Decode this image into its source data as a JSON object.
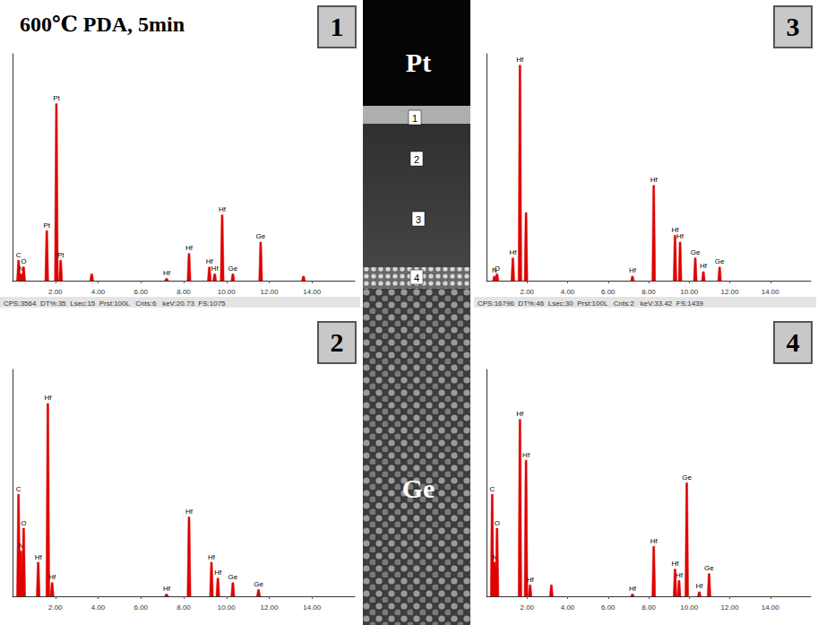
{
  "title": "600℃ PDA, 5min",
  "image": {
    "top_label": "Pt",
    "bottom_label": "Ge",
    "markers": [
      "1",
      "2",
      "3",
      "4"
    ]
  },
  "chart_data": [
    {
      "panel": "1",
      "type": "spectrum",
      "color": "#e00000",
      "xlim": [
        0,
        16
      ],
      "ylim": [
        0,
        100
      ],
      "xticks": [
        {
          "value": 2,
          "label": "2.00"
        },
        {
          "value": 4,
          "label": "4.00"
        },
        {
          "value": 6,
          "label": "6.00"
        },
        {
          "value": 8,
          "label": "8.00"
        },
        {
          "value": 10,
          "label": "10.00"
        },
        {
          "value": 12,
          "label": "12.00"
        },
        {
          "value": 14,
          "label": "14.00"
        }
      ],
      "tick_labels": "x",
      "status": "CPS:3564  DT%:35  Lsec:15  Prst:100L   Cnts:6   keV:20.73  FS:1075",
      "peaks": [
        {
          "x": 0.28,
          "y": 9,
          "label": "C"
        },
        {
          "x": 0.39,
          "y": 3,
          "label": "N"
        },
        {
          "x": 0.52,
          "y": 6,
          "label": "O"
        },
        {
          "x": 1.6,
          "y": 22,
          "label": "Pt"
        },
        {
          "x": 2.05,
          "y": 78,
          "label": "Pt"
        },
        {
          "x": 2.25,
          "y": 9,
          "label": "Pt"
        },
        {
          "x": 3.7,
          "y": 3
        },
        {
          "x": 7.2,
          "y": 1,
          "label": "Hf"
        },
        {
          "x": 8.25,
          "y": 12,
          "label": "Hf"
        },
        {
          "x": 9.2,
          "y": 6,
          "label": "Hf"
        },
        {
          "x": 9.45,
          "y": 3,
          "label": "Hf"
        },
        {
          "x": 9.8,
          "y": 29,
          "label": "Hf"
        },
        {
          "x": 10.3,
          "y": 3,
          "label": "Ge"
        },
        {
          "x": 11.6,
          "y": 17,
          "label": "Ge"
        },
        {
          "x": 13.6,
          "y": 2
        }
      ]
    },
    {
      "panel": "2",
      "type": "spectrum",
      "color": "#e00000",
      "xlim": [
        0,
        16
      ],
      "ylim": [
        0,
        100
      ],
      "xticks": [
        {
          "value": 2,
          "label": "2.00"
        },
        {
          "value": 4,
          "label": "4.00"
        },
        {
          "value": 6,
          "label": "6.00"
        },
        {
          "value": 8,
          "label": "8.00"
        },
        {
          "value": 10,
          "label": "10.00"
        },
        {
          "value": 12,
          "label": "12.00"
        },
        {
          "value": 14,
          "label": "14.00"
        }
      ],
      "tick_labels": "x",
      "peaks": [
        {
          "x": 0.28,
          "y": 45,
          "label": "C"
        },
        {
          "x": 0.39,
          "y": 20,
          "label": "N"
        },
        {
          "x": 0.52,
          "y": 30,
          "label": "O"
        },
        {
          "x": 1.2,
          "y": 15,
          "label": "Hf"
        },
        {
          "x": 1.65,
          "y": 85,
          "label": "Hf"
        },
        {
          "x": 1.85,
          "y": 6,
          "label": "Hf"
        },
        {
          "x": 7.2,
          "y": 1,
          "label": "Hf"
        },
        {
          "x": 8.25,
          "y": 35,
          "label": "Hf"
        },
        {
          "x": 9.3,
          "y": 15,
          "label": "Hf"
        },
        {
          "x": 9.6,
          "y": 8,
          "label": "Hf"
        },
        {
          "x": 10.3,
          "y": 6,
          "label": "Ge"
        },
        {
          "x": 11.5,
          "y": 3,
          "label": "Ge"
        }
      ]
    },
    {
      "panel": "3",
      "type": "spectrum",
      "color": "#e00000",
      "xlim": [
        0,
        16
      ],
      "ylim": [
        0,
        100
      ],
      "xticks": [
        {
          "value": 2,
          "label": "2.00"
        },
        {
          "value": 4,
          "label": "4.00"
        },
        {
          "value": 6,
          "label": "6.00"
        },
        {
          "value": 8,
          "label": "8.00"
        },
        {
          "value": 10,
          "label": "10.00"
        },
        {
          "value": 12,
          "label": "12.00"
        },
        {
          "value": 14,
          "label": "14.00"
        }
      ],
      "tick_labels": "x",
      "status": "CPS:16796  DT%:46  Lsec:30  Prst:100L   Cnts:2   keV:33.42  FS:1439",
      "peaks": [
        {
          "x": 0.39,
          "y": 2,
          "label": "N"
        },
        {
          "x": 0.52,
          "y": 3,
          "label": "O"
        },
        {
          "x": 1.3,
          "y": 10,
          "label": "Hf"
        },
        {
          "x": 1.65,
          "y": 95,
          "label": "Hf"
        },
        {
          "x": 1.95,
          "y": 30
        },
        {
          "x": 7.2,
          "y": 2,
          "label": "Hf"
        },
        {
          "x": 8.25,
          "y": 42,
          "label": "Hf"
        },
        {
          "x": 9.3,
          "y": 20,
          "label": "Hf"
        },
        {
          "x": 9.55,
          "y": 17,
          "label": "Hf"
        },
        {
          "x": 10.3,
          "y": 10,
          "label": "Ge"
        },
        {
          "x": 10.7,
          "y": 4,
          "label": "Hf"
        },
        {
          "x": 11.5,
          "y": 6,
          "label": "Ge"
        }
      ]
    },
    {
      "panel": "4",
      "type": "spectrum",
      "color": "#e00000",
      "xlim": [
        0,
        16
      ],
      "ylim": [
        0,
        100
      ],
      "xticks": [
        {
          "value": 2,
          "label": "2.00"
        },
        {
          "value": 4,
          "label": "4.00"
        },
        {
          "value": 6,
          "label": "6.00"
        },
        {
          "value": 8,
          "label": "8.00"
        },
        {
          "value": 10,
          "label": "10.00"
        },
        {
          "value": 12,
          "label": "12.00"
        },
        {
          "value": 14,
          "label": "14.00"
        }
      ],
      "tick_labels": "x",
      "peaks": [
        {
          "x": 0.28,
          "y": 45,
          "label": "C"
        },
        {
          "x": 0.39,
          "y": 15,
          "label": "N"
        },
        {
          "x": 0.52,
          "y": 30,
          "label": "O"
        },
        {
          "x": 1.65,
          "y": 78,
          "label": "Hf"
        },
        {
          "x": 1.95,
          "y": 60,
          "label": "Hf"
        },
        {
          "x": 2.15,
          "y": 5,
          "label": "Hf"
        },
        {
          "x": 3.2,
          "y": 5
        },
        {
          "x": 7.2,
          "y": 1,
          "label": "Hf"
        },
        {
          "x": 8.25,
          "y": 22,
          "label": "Hf"
        },
        {
          "x": 9.3,
          "y": 12,
          "label": "Hf"
        },
        {
          "x": 9.5,
          "y": 7,
          "label": "Hf"
        },
        {
          "x": 9.88,
          "y": 50,
          "label": "Ge"
        },
        {
          "x": 10.5,
          "y": 2,
          "label": "Hf"
        },
        {
          "x": 10.98,
          "y": 10,
          "label": "Ge"
        }
      ]
    }
  ]
}
